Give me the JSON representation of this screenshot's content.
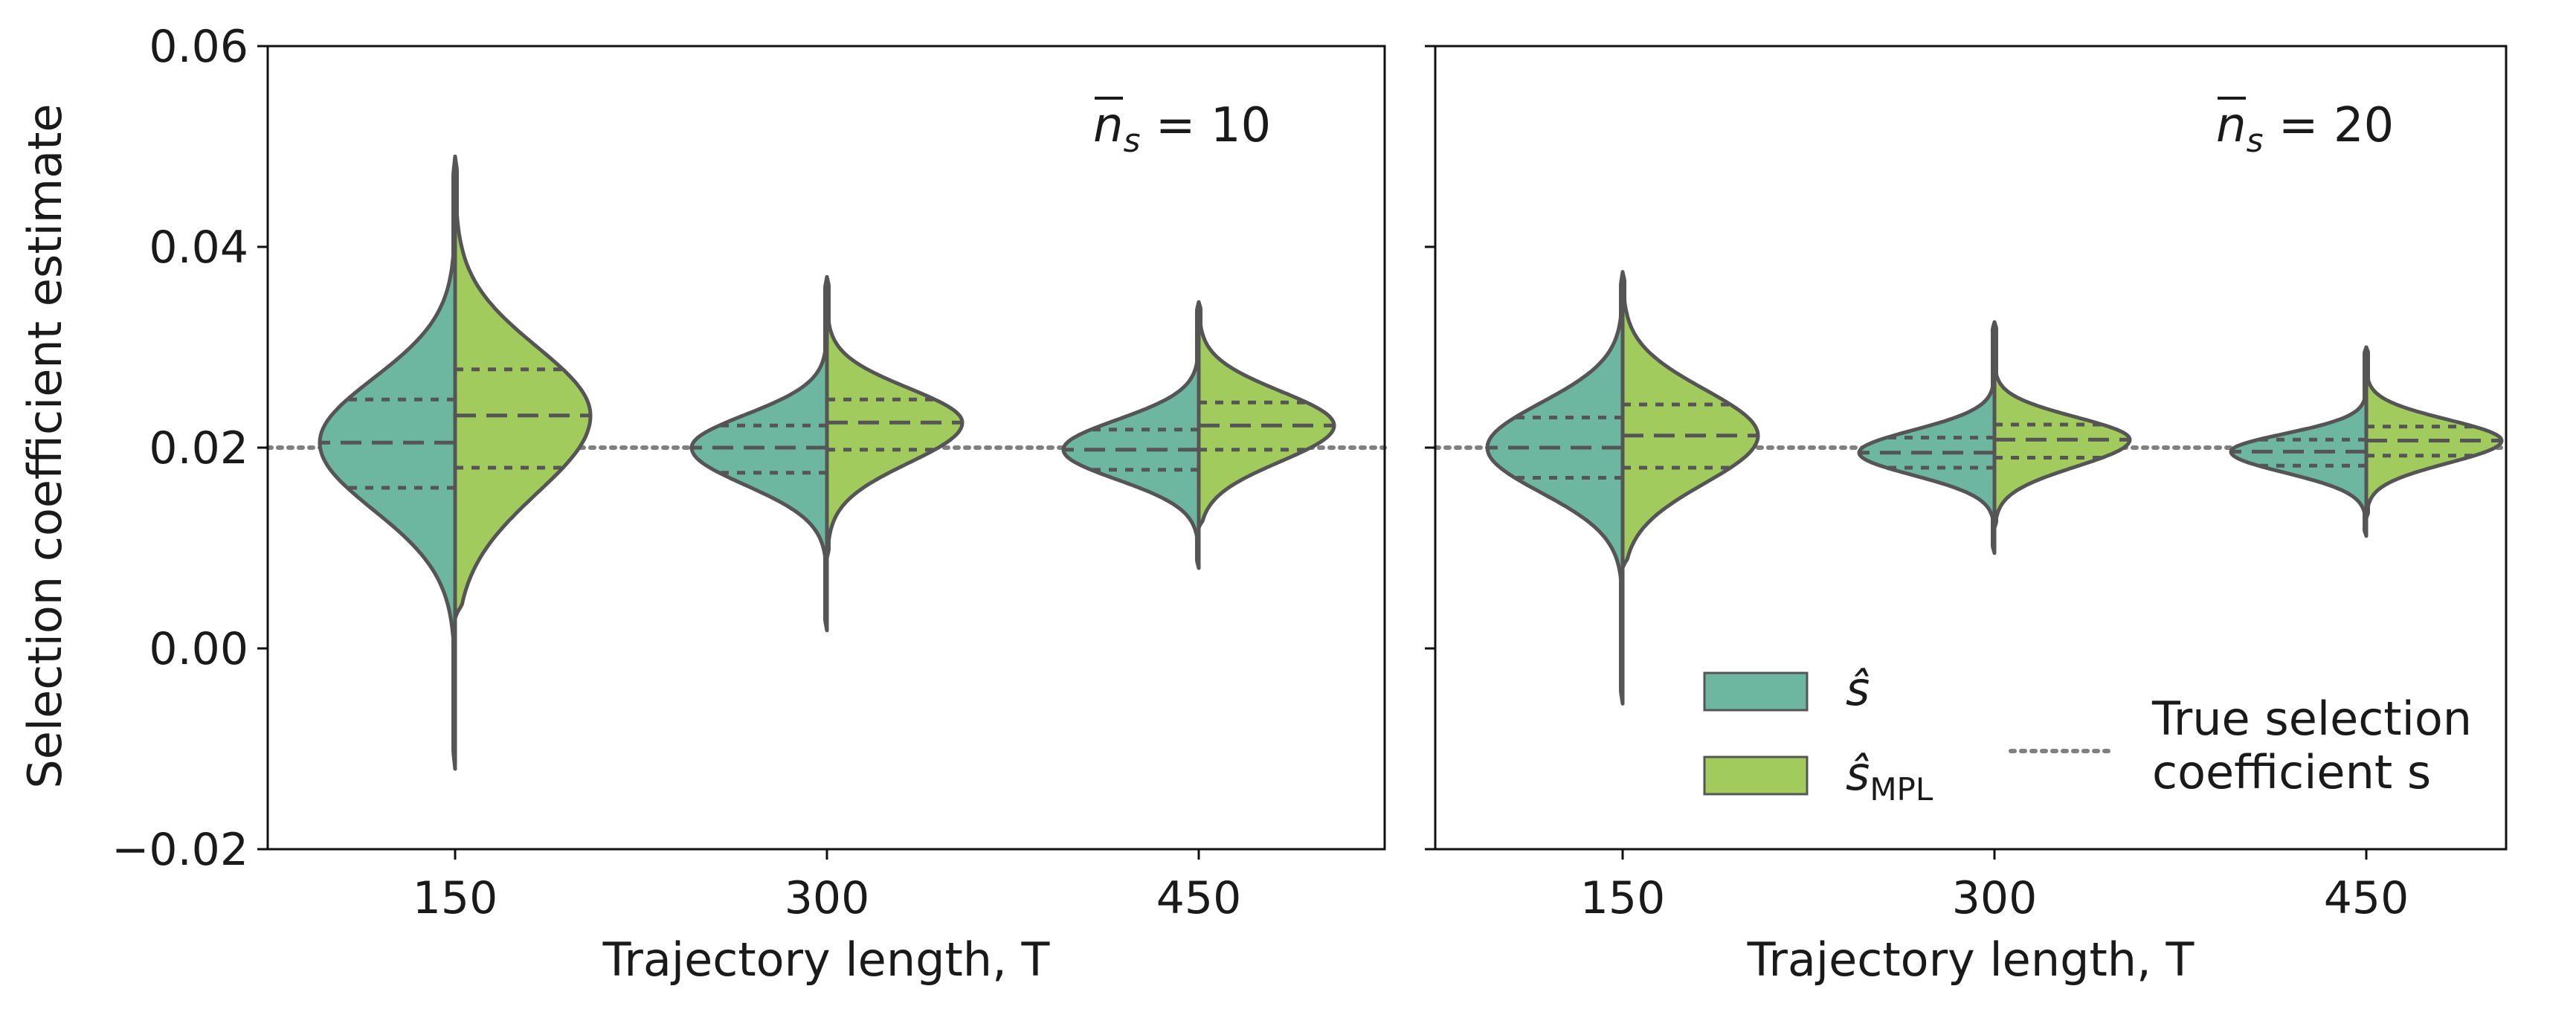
{
  "colors": {
    "s_hat": "#6db6a0",
    "s_mpl": "#a2cb5e",
    "outline": "#555555",
    "true_line": "#808080"
  },
  "chart_data": {
    "type": "violin",
    "ylabel": "Selection coefficient estimate",
    "ylim": [
      -0.02,
      0.06
    ],
    "yticks": [
      "0.06",
      "0.04",
      "0.02",
      "0.00",
      "−0.02"
    ],
    "xticks": [
      "150",
      "300",
      "450"
    ],
    "true_value": 0.02,
    "legend": {
      "placement": "bottom-right of right panel",
      "entries": [
        {
          "key": "s_hat",
          "label": "ŝ"
        },
        {
          "key": "s_mpl",
          "label": "ŝ",
          "sub": "MPL"
        },
        {
          "key": "true",
          "label_line1": "True selection",
          "label_line2": "coefficient s"
        }
      ]
    },
    "panels": [
      {
        "annotation": "n̄s = 10",
        "ann_main": "n",
        "ann_sub": "s",
        "ann_eq": " = 10",
        "xlabel": "Trajectory length, T",
        "groups": [
          {
            "T": 150,
            "s_hat": {
              "min": -0.012,
              "q1": 0.016,
              "median": 0.0205,
              "q3": 0.0248,
              "max": 0.049
            },
            "s_mpl": {
              "min": 0.003,
              "q1": 0.018,
              "median": 0.0232,
              "q3": 0.0278,
              "max": 0.049
            }
          },
          {
            "T": 300,
            "s_hat": {
              "min": 0.0018,
              "q1": 0.0175,
              "median": 0.02,
              "q3": 0.0222,
              "max": 0.037
            },
            "s_mpl": {
              "min": 0.009,
              "q1": 0.0198,
              "median": 0.0225,
              "q3": 0.0248,
              "max": 0.037
            }
          },
          {
            "T": 450,
            "s_hat": {
              "min": 0.008,
              "q1": 0.0178,
              "median": 0.0198,
              "q3": 0.0218,
              "max": 0.0345
            },
            "s_mpl": {
              "min": 0.012,
              "q1": 0.0198,
              "median": 0.0222,
              "q3": 0.0245,
              "max": 0.0345
            }
          }
        ]
      },
      {
        "annotation": "n̄s = 20",
        "ann_main": "n",
        "ann_sub": "s",
        "ann_eq": " = 20",
        "xlabel": "Trajectory length, T",
        "groups": [
          {
            "T": 150,
            "s_hat": {
              "min": -0.0055,
              "q1": 0.017,
              "median": 0.02,
              "q3": 0.023,
              "max": 0.0375
            },
            "s_mpl": {
              "min": 0.008,
              "q1": 0.018,
              "median": 0.0212,
              "q3": 0.0243,
              "max": 0.0375
            }
          },
          {
            "T": 300,
            "s_hat": {
              "min": 0.0095,
              "q1": 0.018,
              "median": 0.0195,
              "q3": 0.021,
              "max": 0.0325
            },
            "s_mpl": {
              "min": 0.012,
              "q1": 0.019,
              "median": 0.0208,
              "q3": 0.0223,
              "max": 0.0325
            }
          },
          {
            "T": 450,
            "s_hat": {
              "min": 0.0112,
              "q1": 0.0182,
              "median": 0.0196,
              "q3": 0.0208,
              "max": 0.03
            },
            "s_mpl": {
              "min": 0.013,
              "q1": 0.0192,
              "median": 0.0207,
              "q3": 0.0221,
              "max": 0.03
            }
          }
        ]
      }
    ]
  }
}
